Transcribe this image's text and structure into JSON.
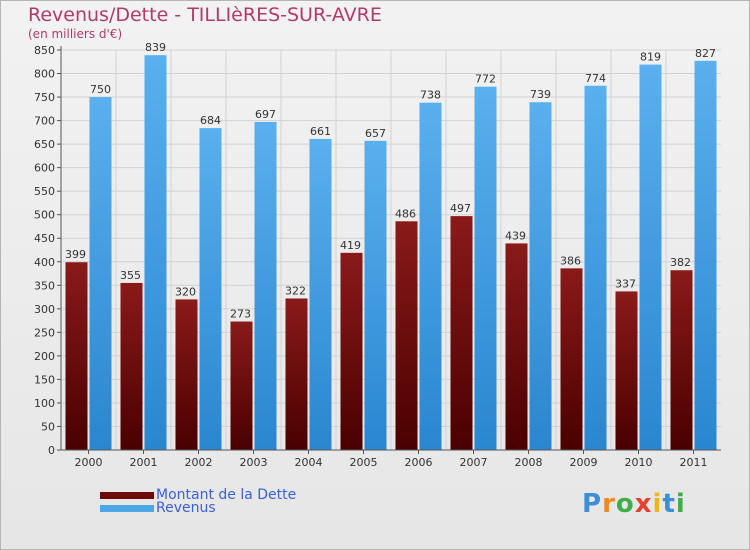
{
  "title": "Revenus/Dette - TILLIèRES-SUR-AVRE",
  "subtitle": "(en milliers d'€)",
  "logo": {
    "text": "Proxiti",
    "letters": [
      "P",
      "r",
      "o",
      "x",
      "i",
      "t",
      "i"
    ],
    "colors": [
      "#3a8fd6",
      "#f08a1c",
      "#3fae49",
      "#e8412c",
      "#f0b61c",
      "#3a8fd6",
      "#3fae49"
    ]
  },
  "chart_data": {
    "type": "bar",
    "categories": [
      "2000",
      "2001",
      "2002",
      "2003",
      "2004",
      "2005",
      "2006",
      "2007",
      "2008",
      "2009",
      "2010",
      "2011"
    ],
    "series": [
      {
        "name": "Montant de la Dette",
        "color": "#6e0a0a",
        "values": [
          399,
          355,
          320,
          273,
          322,
          419,
          486,
          497,
          439,
          386,
          337,
          382
        ]
      },
      {
        "name": "Revenus",
        "color": "#4da6e8",
        "values": [
          750,
          839,
          684,
          697,
          661,
          657,
          738,
          772,
          739,
          774,
          819,
          827
        ]
      }
    ],
    "ylim": [
      0,
      850
    ],
    "ytick_step": 50,
    "grid": true,
    "legend": "bottom-left"
  }
}
